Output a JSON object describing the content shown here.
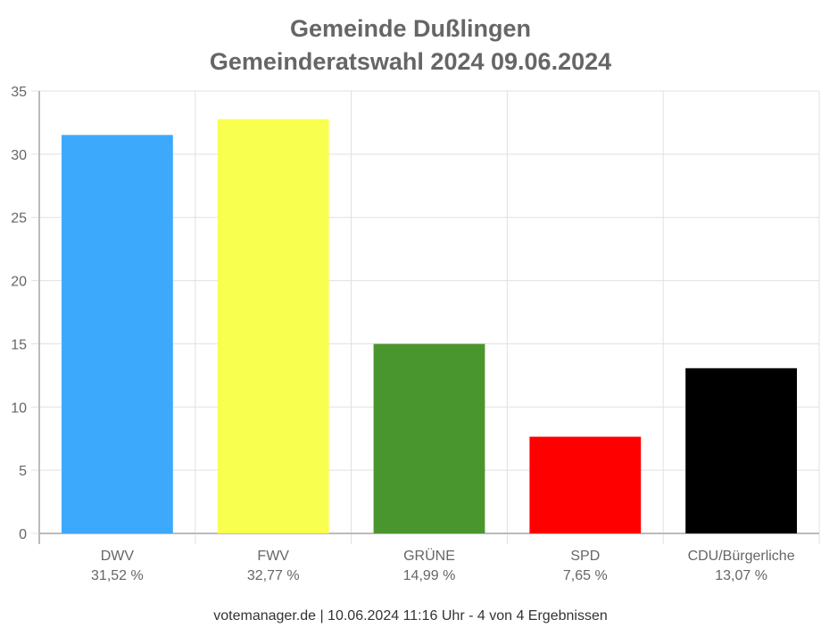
{
  "chart_data": {
    "type": "bar",
    "title": [
      "Gemeinde Dußlingen",
      "Gemeinderatswahl 2024 09.06.2024"
    ],
    "categories": [
      "DWV",
      "FWV",
      "GRÜNE",
      "SPD",
      "CDU/Bürgerliche"
    ],
    "value_labels": [
      "31,52 %",
      "32,77 %",
      "14,99 %",
      "7,65 %",
      "13,07 %"
    ],
    "values": [
      31.52,
      32.77,
      14.99,
      7.65,
      13.07
    ],
    "colors": [
      "#3da9fc",
      "#f8ff4f",
      "#4a962e",
      "#ff0000",
      "#000000"
    ],
    "ylim": [
      0,
      35
    ],
    "yticks": [
      0,
      5,
      10,
      15,
      20,
      25,
      30,
      35
    ],
    "xlabel": "",
    "ylabel": "",
    "grid": true,
    "footer": "votemanager.de | 10.06.2024 11:16 Uhr - 4 von 4 Ergebnissen"
  }
}
